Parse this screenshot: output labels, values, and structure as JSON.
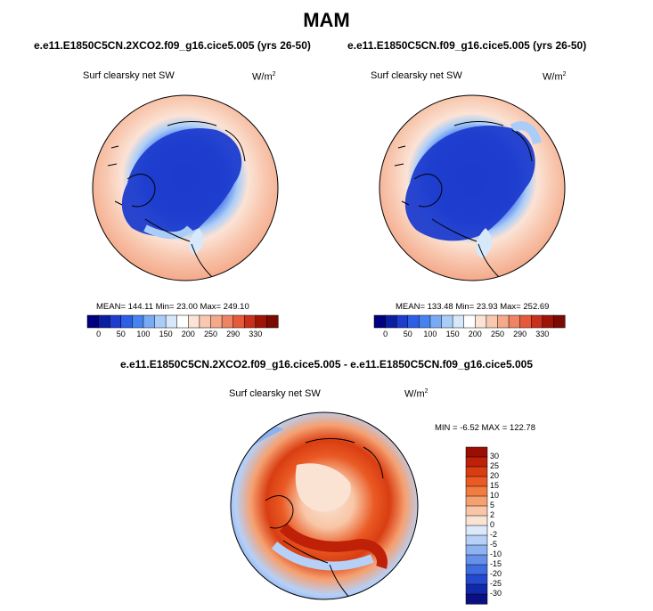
{
  "title": "MAM",
  "panels": [
    {
      "case": "e.e11.E1850C5CN.2XCO2.f09_g16.cice5.005 (yrs 26-50)",
      "variable": "Surf clearsky net SW",
      "units_base": "W/m",
      "units_exp": "2",
      "stats": "MEAN= 144.11  Min=  23.00  Max= 249.10"
    },
    {
      "case": "e.e11.E1850C5CN.f09_g16.cice5.005 (yrs 26-50)",
      "variable": "Surf clearsky net SW",
      "units_base": "W/m",
      "units_exp": "2",
      "stats": "MEAN= 133.48  Min=  23.93  Max= 252.69"
    }
  ],
  "colorbar_top": {
    "ticks": [
      "0",
      "50",
      "100",
      "150",
      "200",
      "250",
      "290",
      "330"
    ],
    "colors": [
      "#00007f",
      "#0a1ea0",
      "#1e3ccd",
      "#2d5fe6",
      "#4682f0",
      "#78aaf5",
      "#aacdf8",
      "#d7e8fa",
      "#ffffff",
      "#fbe3d6",
      "#f8c8b0",
      "#f4a98a",
      "#ee8463",
      "#e55a3b",
      "#c8301c",
      "#9e1508",
      "#7a0a02"
    ]
  },
  "difference": {
    "title": "e.e11.E1850C5CN.2XCO2.f09_g16.cice5.005 - e.e11.E1850C5CN.f09_g16.cice5.005",
    "variable": "Surf clearsky net SW",
    "units_base": "W/m",
    "units_exp": "2",
    "stats": "MIN =  -6.52 MAX = 122.78",
    "colorbar_ticks": [
      "30",
      "25",
      "20",
      "15",
      "10",
      "5",
      "2",
      "0",
      "-2",
      "-5",
      "-10",
      "-15",
      "-20",
      "-25",
      "-30"
    ],
    "colorbar_colors": [
      "#9a0e03",
      "#be2008",
      "#d93d12",
      "#ea5a24",
      "#f27c40",
      "#f6a070",
      "#f8c6a6",
      "#fbe3d4",
      "#dbe9fb",
      "#b6d0f7",
      "#8cb2f1",
      "#6490ea",
      "#3e6de2",
      "#2449cf",
      "#1228ab",
      "#0a0f82"
    ]
  }
}
